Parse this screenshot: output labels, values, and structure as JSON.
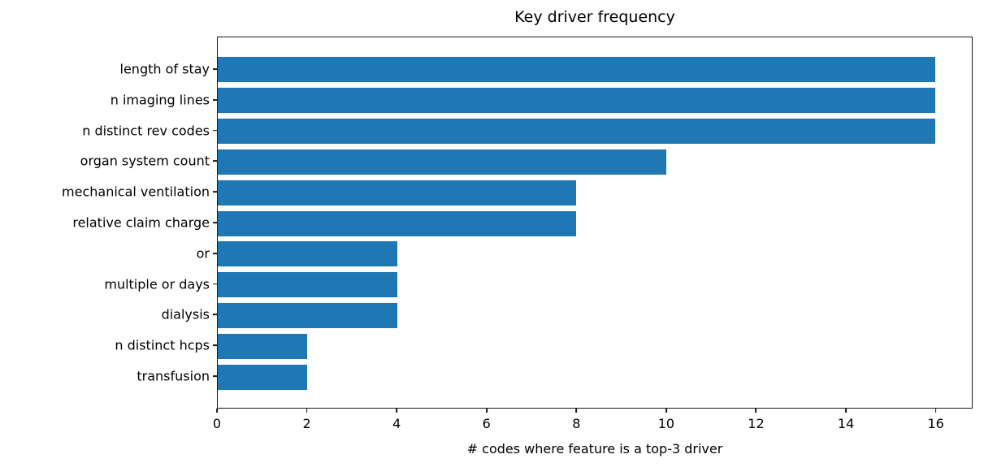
{
  "chart_data": {
    "type": "bar",
    "orientation": "horizontal",
    "title": "Key driver frequency",
    "xlabel": "# codes where feature is a top-3 driver",
    "ylabel": "",
    "categories": [
      "length of stay",
      "n imaging lines",
      "n distinct rev codes",
      "organ system count",
      "mechanical ventilation",
      "relative claim charge",
      "or",
      "multiple or days",
      "dialysis",
      "n distinct hcps",
      "transfusion"
    ],
    "values": [
      16,
      16,
      16,
      10,
      8,
      8,
      4,
      4,
      4,
      2,
      2
    ],
    "xticks": [
      0,
      2,
      4,
      6,
      8,
      10,
      12,
      14,
      16
    ],
    "xlim": [
      0,
      16.82
    ],
    "grid": false,
    "legend_position": "none",
    "bar_color": "#1f77b4",
    "spine_color": "#1a1a1a",
    "text_color": "#000000"
  }
}
